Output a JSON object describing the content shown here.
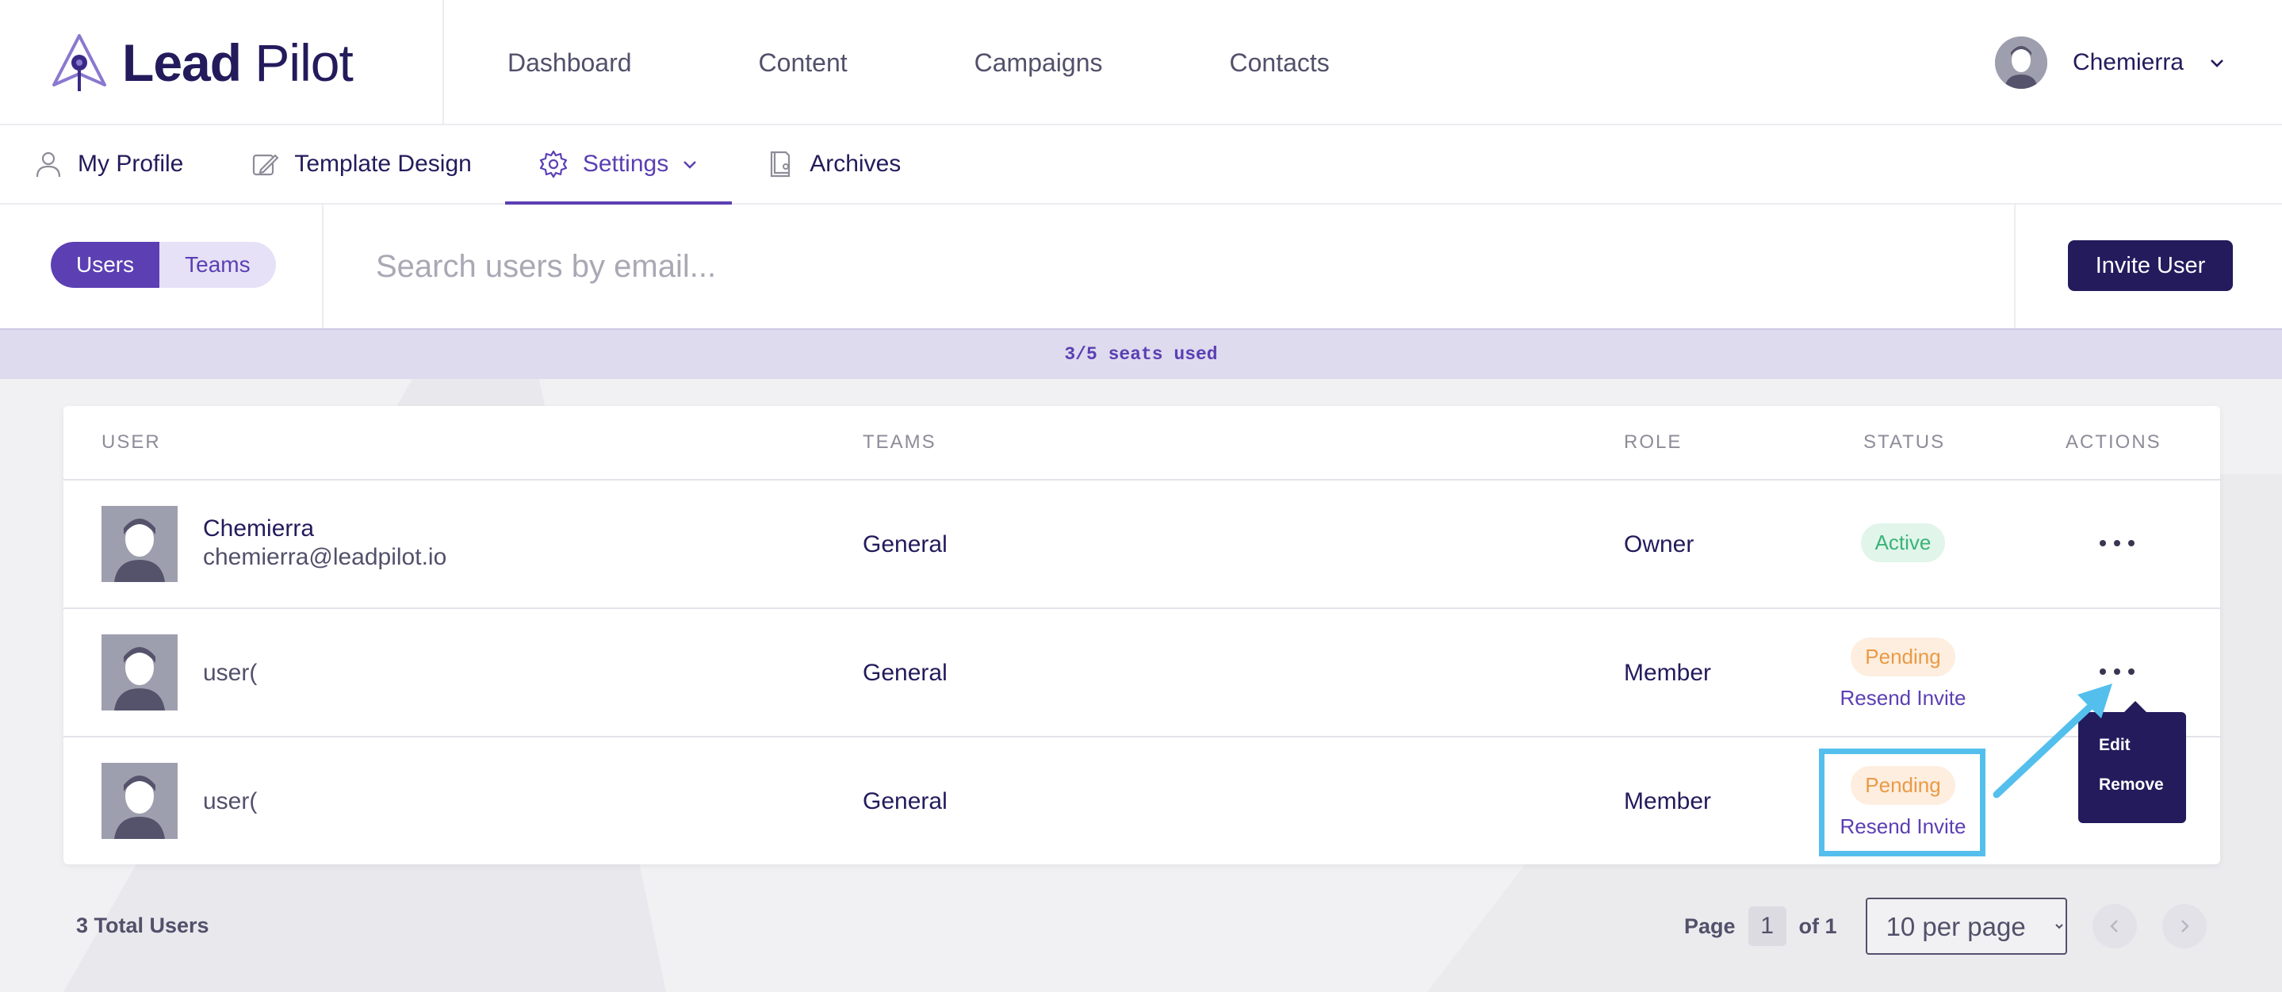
{
  "brand": {
    "bold": "Lead",
    "light": "Pilot"
  },
  "main_nav": [
    "Dashboard",
    "Content",
    "Campaigns",
    "Contacts"
  ],
  "user_menu": {
    "name": "Chemierra"
  },
  "sub_nav": [
    {
      "label": "My Profile",
      "icon": "person-icon"
    },
    {
      "label": "Template Design",
      "icon": "edit-icon"
    },
    {
      "label": "Settings",
      "icon": "gear-icon",
      "active": true
    },
    {
      "label": "Archives",
      "icon": "archive-icon"
    }
  ],
  "toggle": {
    "users": "Users",
    "teams": "Teams",
    "selected": "Users"
  },
  "search": {
    "placeholder": "Search users by email..."
  },
  "invite_button": "Invite User",
  "seats": "3/5 seats used",
  "table": {
    "headers": {
      "user": "USER",
      "teams": "TEAMS",
      "role": "ROLE",
      "status": "STATUS",
      "actions": "ACTIONS"
    },
    "rows": [
      {
        "name": "Chemierra",
        "email": "chemierra@leadpilot.io",
        "team": "General",
        "role": "Owner",
        "status": "Active",
        "resend": ""
      },
      {
        "name": "user(",
        "email": "",
        "team": "General",
        "role": "Member",
        "status": "Pending",
        "resend": "Resend Invite"
      },
      {
        "name": "user(",
        "email": "",
        "team": "General",
        "role": "Member",
        "status": "Pending",
        "resend": "Resend Invite"
      }
    ]
  },
  "actions_menu": [
    "Edit",
    "Remove"
  ],
  "footer": {
    "total": "3 Total Users",
    "page_label": "Page",
    "page": "1",
    "of_label": "of 1",
    "per_page": "10 per page"
  },
  "colors": {
    "brand_dark": "#231b5c",
    "accent": "#5b3fb3",
    "active_green": "#3bb377",
    "pending_orange": "#ea9a45",
    "annotation": "#54bfec"
  }
}
